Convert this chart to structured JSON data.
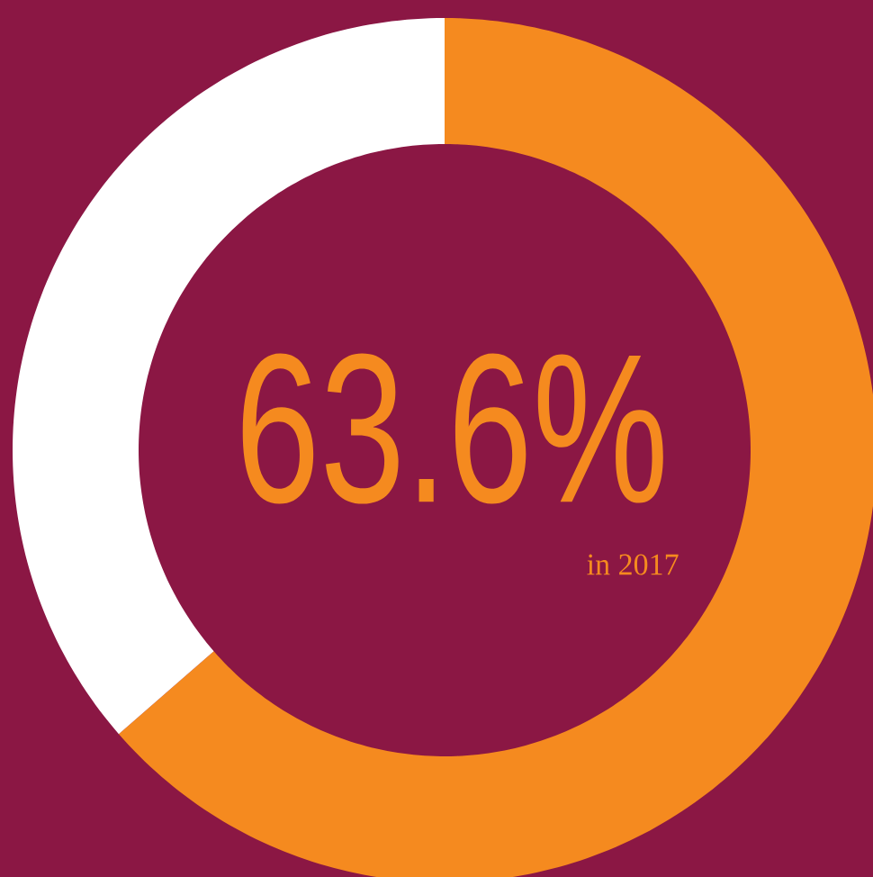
{
  "chart_data": {
    "type": "donut",
    "categories": [
      null,
      null
    ],
    "values": [
      63.6,
      36.4
    ],
    "colors": [
      "#f58a1f",
      "#ffffff"
    ],
    "annotations": [
      "63.6%",
      "in 2017"
    ]
  }
}
